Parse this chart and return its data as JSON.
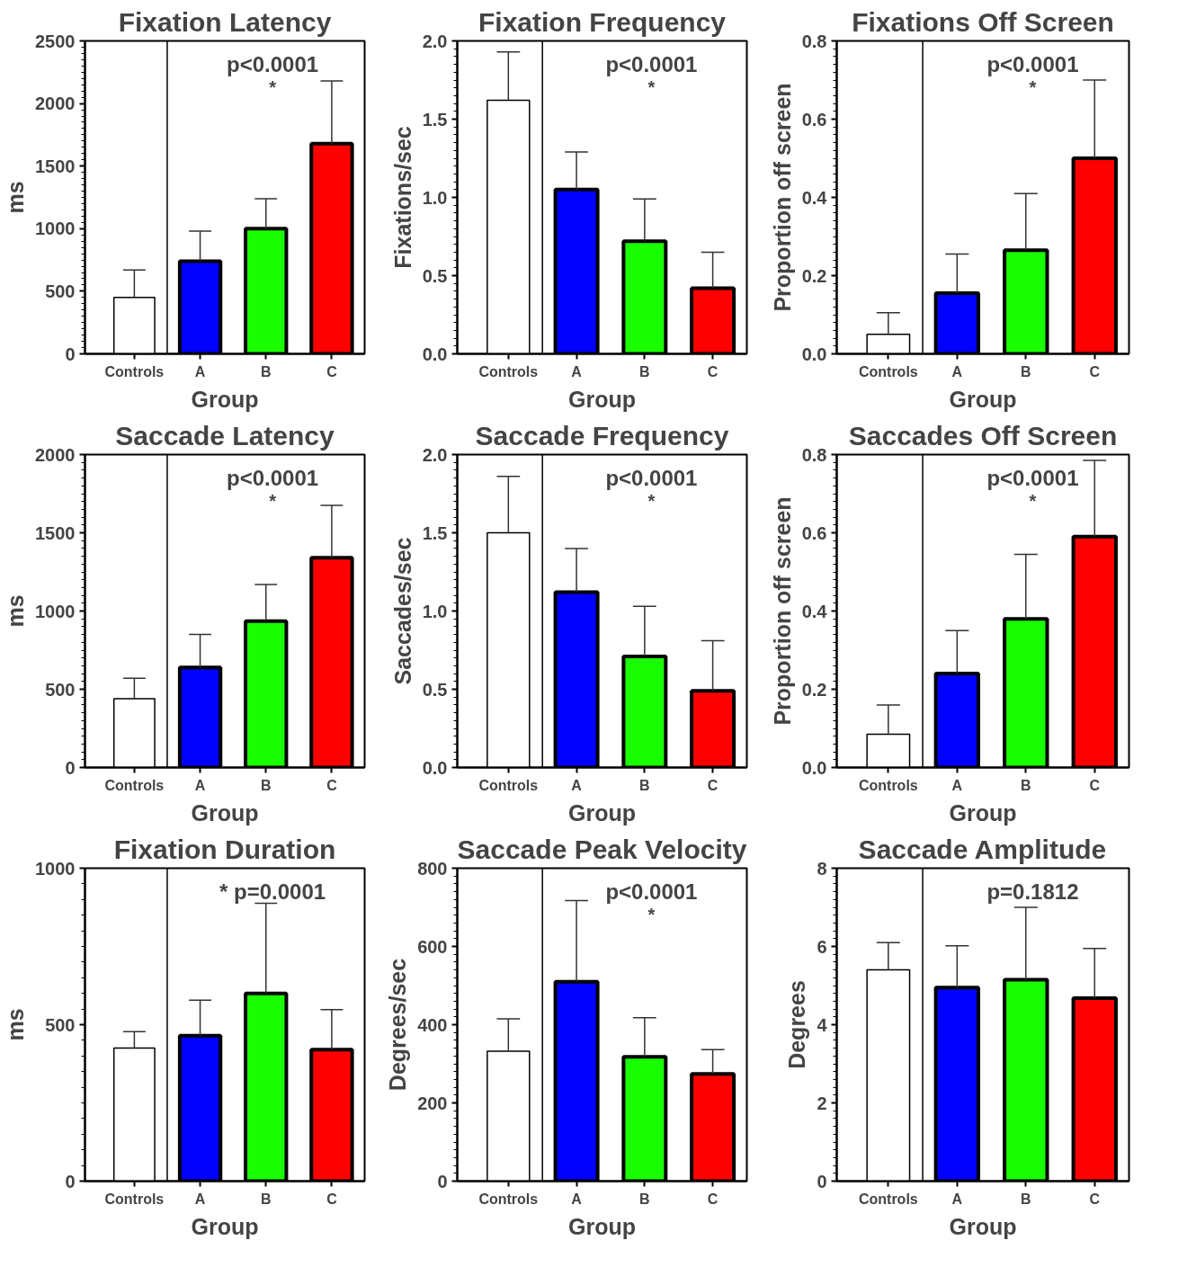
{
  "chart_data": [
    {
      "type": "bar",
      "title": "Fixation Latency",
      "xlabel": "Group",
      "ylabel": "ms",
      "categories": [
        "Controls",
        "A",
        "B",
        "C"
      ],
      "values": [
        450,
        740,
        1000,
        1680
      ],
      "errors": [
        [
          450,
          670
        ],
        [
          740,
          980
        ],
        [
          1000,
          1240
        ],
        [
          1680,
          2180
        ]
      ],
      "colors": [
        "#ffffff",
        "#0000ff",
        "#1aff00",
        "#ff0000"
      ],
      "ylim": [
        0,
        2500
      ],
      "yticks": [
        0,
        500,
        1000,
        1500,
        2000,
        2500
      ],
      "annotations": [
        "p<0.0001",
        "*"
      ]
    },
    {
      "type": "bar",
      "title": "Fixation Frequency",
      "xlabel": "Group",
      "ylabel": "Fixations/sec",
      "categories": [
        "Controls",
        "A",
        "B",
        "C"
      ],
      "values": [
        1.62,
        1.05,
        0.72,
        0.42
      ],
      "errors": [
        [
          1.62,
          1.93
        ],
        [
          1.05,
          1.29
        ],
        [
          0.72,
          0.99
        ],
        [
          0.42,
          0.65
        ]
      ],
      "colors": [
        "#ffffff",
        "#0000ff",
        "#1aff00",
        "#ff0000"
      ],
      "ylim": [
        0,
        2
      ],
      "yticks": [
        {
          "value": 0,
          "label": "0.0"
        },
        0.5,
        {
          "value": 1,
          "label": "1.0"
        },
        1.5,
        {
          "value": 2,
          "label": "2.0"
        }
      ],
      "annotations": [
        "p<0.0001",
        "*"
      ]
    },
    {
      "type": "bar",
      "title": "Fixations Off Screen",
      "xlabel": "Group",
      "ylabel": "Proportion off screen",
      "categories": [
        "Controls",
        "A",
        "B",
        "C"
      ],
      "values": [
        0.05,
        0.155,
        0.265,
        0.5
      ],
      "errors": [
        [
          0.05,
          0.105
        ],
        [
          0.155,
          0.255
        ],
        [
          0.265,
          0.41
        ],
        [
          0.5,
          0.7
        ]
      ],
      "colors": [
        "#ffffff",
        "#0000ff",
        "#1aff00",
        "#ff0000"
      ],
      "ylim": [
        0,
        0.8
      ],
      "yticks": [
        {
          "value": 0,
          "label": "0.0"
        },
        0.2,
        0.4,
        0.6,
        0.8
      ],
      "annotations": [
        "p<0.0001",
        "*"
      ]
    },
    {
      "type": "bar",
      "title": "Saccade Latency",
      "xlabel": "Group",
      "ylabel": "ms",
      "categories": [
        "Controls",
        "A",
        "B",
        "C"
      ],
      "values": [
        440,
        640,
        935,
        1340
      ],
      "errors": [
        [
          440,
          570
        ],
        [
          640,
          850
        ],
        [
          935,
          1170
        ],
        [
          1340,
          1675
        ]
      ],
      "colors": [
        "#ffffff",
        "#0000ff",
        "#1aff00",
        "#ff0000"
      ],
      "ylim": [
        0,
        2000
      ],
      "yticks": [
        0,
        500,
        1000,
        1500,
        2000
      ],
      "annotations": [
        "p<0.0001",
        "*"
      ]
    },
    {
      "type": "bar",
      "title": "Saccade Frequency",
      "xlabel": "Group",
      "ylabel": "Saccades/sec",
      "categories": [
        "Controls",
        "A",
        "B",
        "C"
      ],
      "values": [
        1.5,
        1.12,
        0.71,
        0.49
      ],
      "errors": [
        [
          1.5,
          1.86
        ],
        [
          1.12,
          1.4
        ],
        [
          0.71,
          1.03
        ],
        [
          0.49,
          0.81
        ]
      ],
      "colors": [
        "#ffffff",
        "#0000ff",
        "#1aff00",
        "#ff0000"
      ],
      "ylim": [
        0,
        2
      ],
      "yticks": [
        {
          "value": 0,
          "label": "0.0"
        },
        0.5,
        {
          "value": 1,
          "label": "1.0"
        },
        1.5,
        {
          "value": 2,
          "label": "2.0"
        }
      ],
      "annotations": [
        "p<0.0001",
        "*"
      ]
    },
    {
      "type": "bar",
      "title": "Saccades Off Screen",
      "xlabel": "Group",
      "ylabel": "Proportion off screen",
      "categories": [
        "Controls",
        "A",
        "B",
        "C"
      ],
      "values": [
        0.085,
        0.24,
        0.38,
        0.59
      ],
      "errors": [
        [
          0.085,
          0.16
        ],
        [
          0.24,
          0.35
        ],
        [
          0.38,
          0.545
        ],
        [
          0.59,
          0.785
        ]
      ],
      "colors": [
        "#ffffff",
        "#0000ff",
        "#1aff00",
        "#ff0000"
      ],
      "ylim": [
        0,
        0.8
      ],
      "yticks": [
        {
          "value": 0,
          "label": "0.0"
        },
        0.2,
        0.4,
        0.6,
        0.8
      ],
      "annotations": [
        "p<0.0001",
        "*"
      ]
    },
    {
      "type": "bar",
      "title": "Fixation Duration",
      "xlabel": "Group",
      "ylabel": "ms",
      "categories": [
        "Controls",
        "A",
        "B",
        "C"
      ],
      "values": [
        425,
        465,
        600,
        420
      ],
      "errors": [
        [
          425,
          478
        ],
        [
          465,
          578
        ],
        [
          600,
          888
        ],
        [
          420,
          548
        ]
      ],
      "colors": [
        "#ffffff",
        "#0000ff",
        "#1aff00",
        "#ff0000"
      ],
      "ylim": [
        0,
        1000
      ],
      "yticks": [
        0,
        500,
        1000
      ],
      "annotations": [
        "* p=0.0001"
      ]
    },
    {
      "type": "bar",
      "title": "Saccade Peak Velocity",
      "xlabel": "Group",
      "ylabel": "Degrees/sec",
      "categories": [
        "Controls",
        "A",
        "B",
        "C"
      ],
      "values": [
        332,
        510,
        318,
        274
      ],
      "errors": [
        [
          332,
          415
        ],
        [
          510,
          717
        ],
        [
          318,
          418
        ],
        [
          274,
          336
        ]
      ],
      "colors": [
        "#ffffff",
        "#0000ff",
        "#1aff00",
        "#ff0000"
      ],
      "ylim": [
        0,
        800
      ],
      "yticks": [
        0,
        200,
        400,
        600,
        800
      ],
      "annotations": [
        "p<0.0001",
        "*"
      ]
    },
    {
      "type": "bar",
      "title": "Saccade Amplitude",
      "xlabel": "Group",
      "ylabel": "Degrees",
      "categories": [
        "Controls",
        "A",
        "B",
        "C"
      ],
      "values": [
        5.4,
        4.95,
        5.15,
        4.68
      ],
      "errors": [
        [
          5.4,
          6.1
        ],
        [
          4.95,
          6.02
        ],
        [
          5.15,
          7.0
        ],
        [
          4.68,
          5.95
        ]
      ],
      "colors": [
        "#ffffff",
        "#0000ff",
        "#1aff00",
        "#ff0000"
      ],
      "ylim": [
        0,
        8
      ],
      "yticks": [
        0,
        2,
        4,
        6,
        8
      ],
      "annotations": [
        "p=0.1812"
      ]
    }
  ]
}
